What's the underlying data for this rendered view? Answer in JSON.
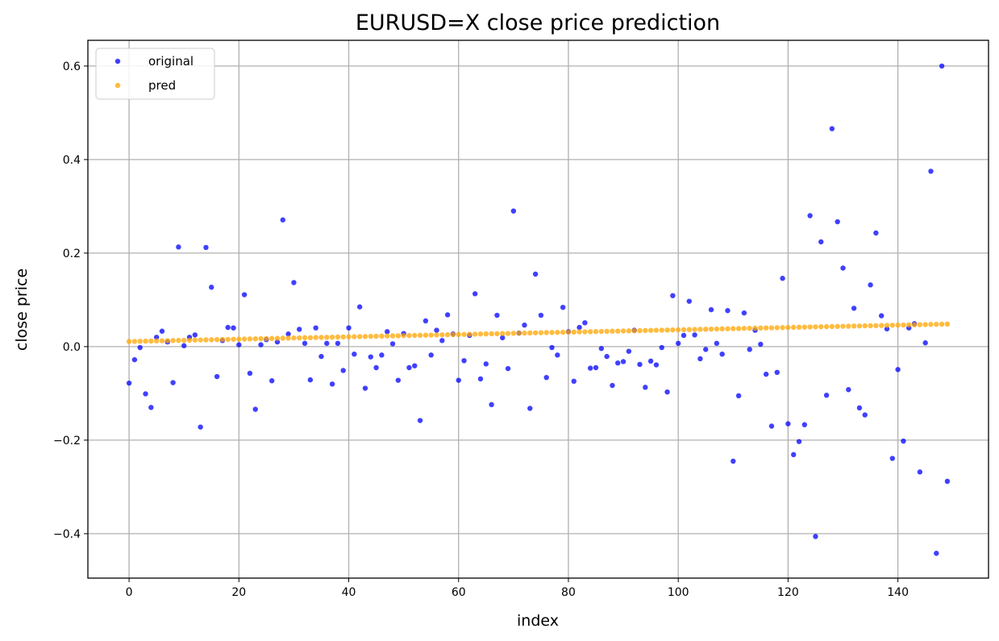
{
  "chart_data": {
    "type": "scatter",
    "title": "EURUSD=X close price prediction",
    "xlabel": "index",
    "ylabel": "close price",
    "xlim": [
      -7.5,
      156.5
    ],
    "ylim": [
      -0.495,
      0.655
    ],
    "xticks": [
      0,
      20,
      40,
      60,
      80,
      100,
      120,
      140
    ],
    "yticks": [
      -0.4,
      -0.2,
      0.0,
      0.2,
      0.4,
      0.6
    ],
    "xtick_labels": [
      "0",
      "20",
      "40",
      "60",
      "80",
      "100",
      "120",
      "140"
    ],
    "ytick_labels": [
      "−0.4",
      "−0.2",
      "0.0",
      "0.2",
      "0.4",
      "0.6"
    ],
    "grid": true,
    "legend_position": "upper-left",
    "series": [
      {
        "name": "original",
        "color": "#0000ff",
        "x": [
          0,
          1,
          2,
          3,
          4,
          5,
          6,
          7,
          8,
          9,
          10,
          11,
          12,
          13,
          14,
          15,
          16,
          17,
          18,
          19,
          20,
          21,
          22,
          23,
          24,
          25,
          26,
          27,
          28,
          29,
          30,
          31,
          32,
          33,
          34,
          35,
          36,
          37,
          38,
          39,
          40,
          41,
          42,
          43,
          44,
          45,
          46,
          47,
          48,
          49,
          50,
          51,
          52,
          53,
          54,
          55,
          56,
          57,
          58,
          59,
          60,
          61,
          62,
          63,
          64,
          65,
          66,
          67,
          68,
          69,
          70,
          71,
          72,
          73,
          74,
          75,
          76,
          77,
          78,
          79,
          80,
          81,
          82,
          83,
          84,
          85,
          86,
          87,
          88,
          89,
          90,
          91,
          92,
          93,
          94,
          95,
          96,
          97,
          98,
          99,
          100,
          101,
          102,
          103,
          104,
          105,
          106,
          107,
          108,
          109,
          110,
          111,
          112,
          113,
          114,
          115,
          116,
          117,
          118,
          119,
          120,
          121,
          122,
          123,
          124,
          125,
          126,
          127,
          128,
          129,
          130,
          131,
          132,
          133,
          134,
          135,
          136,
          137,
          138,
          139,
          140,
          141,
          142,
          143,
          144,
          145,
          146,
          147,
          148,
          149
        ],
        "y": [
          -0.078,
          -0.028,
          -0.002,
          -0.101,
          -0.13,
          0.02,
          0.033,
          0.01,
          -0.077,
          0.213,
          0.002,
          0.02,
          0.025,
          -0.172,
          0.212,
          0.127,
          -0.064,
          0.013,
          0.041,
          0.04,
          0.004,
          0.111,
          -0.057,
          -0.134,
          0.004,
          0.015,
          -0.073,
          0.01,
          0.271,
          0.027,
          0.137,
          0.037,
          0.007,
          -0.071,
          0.04,
          -0.021,
          0.007,
          -0.08,
          0.007,
          -0.051,
          0.04,
          -0.016,
          0.085,
          -0.089,
          -0.022,
          -0.045,
          -0.018,
          0.032,
          0.006,
          -0.072,
          0.028,
          -0.045,
          -0.041,
          -0.158,
          0.055,
          -0.018,
          0.035,
          0.013,
          0.068,
          0.027,
          -0.072,
          -0.03,
          0.024,
          0.113,
          -0.069,
          -0.037,
          -0.124,
          0.067,
          0.019,
          -0.047,
          0.29,
          0.029,
          0.046,
          -0.132,
          0.155,
          0.067,
          -0.066,
          -0.002,
          -0.018,
          0.084,
          0.032,
          -0.074,
          0.041,
          0.051,
          -0.046,
          -0.045,
          -0.004,
          -0.021,
          -0.083,
          -0.035,
          -0.032,
          -0.01,
          0.035,
          -0.038,
          -0.087,
          -0.031,
          -0.039,
          -0.002,
          -0.097,
          0.109,
          0.007,
          0.024,
          0.097,
          0.025,
          -0.026,
          -0.006,
          0.079,
          0.007,
          -0.016,
          0.077,
          -0.245,
          -0.105,
          0.072,
          -0.006,
          0.035,
          0.005,
          -0.059,
          -0.17,
          -0.055,
          0.146,
          -0.165,
          -0.231,
          -0.203,
          -0.167,
          0.28,
          -0.406,
          0.224,
          -0.104,
          0.466,
          0.267,
          0.168,
          -0.092,
          0.082,
          -0.131,
          -0.146,
          0.132,
          0.243,
          0.066,
          0.038,
          -0.239,
          -0.049,
          -0.202,
          0.04,
          0.049,
          -0.268,
          0.008,
          0.375,
          -0.442,
          0.6,
          -0.288
        ]
      },
      {
        "name": "pred",
        "color": "#ffa500",
        "x": [
          0,
          1,
          2,
          3,
          4,
          5,
          6,
          7,
          8,
          9,
          10,
          11,
          12,
          13,
          14,
          15,
          16,
          17,
          18,
          19,
          20,
          21,
          22,
          23,
          24,
          25,
          26,
          27,
          28,
          29,
          30,
          31,
          32,
          33,
          34,
          35,
          36,
          37,
          38,
          39,
          40,
          41,
          42,
          43,
          44,
          45,
          46,
          47,
          48,
          49,
          50,
          51,
          52,
          53,
          54,
          55,
          56,
          57,
          58,
          59,
          60,
          61,
          62,
          63,
          64,
          65,
          66,
          67,
          68,
          69,
          70,
          71,
          72,
          73,
          74,
          75,
          76,
          77,
          78,
          79,
          80,
          81,
          82,
          83,
          84,
          85,
          86,
          87,
          88,
          89,
          90,
          91,
          92,
          93,
          94,
          95,
          96,
          97,
          98,
          99,
          100,
          101,
          102,
          103,
          104,
          105,
          106,
          107,
          108,
          109,
          110,
          111,
          112,
          113,
          114,
          115,
          116,
          117,
          118,
          119,
          120,
          121,
          122,
          123,
          124,
          125,
          126,
          127,
          128,
          129,
          130,
          131,
          132,
          133,
          134,
          135,
          136,
          137,
          138,
          139,
          140,
          141,
          142,
          143,
          144,
          145,
          146,
          147,
          148,
          149
        ],
        "y": [
          0.011,
          0.0112,
          0.0115,
          0.0117,
          0.012,
          0.0122,
          0.0125,
          0.0127,
          0.013,
          0.0132,
          0.0135,
          0.0137,
          0.014,
          0.0142,
          0.0145,
          0.0147,
          0.015,
          0.0152,
          0.0155,
          0.0157,
          0.016,
          0.0162,
          0.0165,
          0.0167,
          0.017,
          0.0172,
          0.0175,
          0.0177,
          0.018,
          0.0182,
          0.0185,
          0.0187,
          0.019,
          0.0192,
          0.0195,
          0.0197,
          0.02,
          0.0202,
          0.0205,
          0.0207,
          0.021,
          0.0212,
          0.0215,
          0.0217,
          0.022,
          0.0222,
          0.0225,
          0.0227,
          0.023,
          0.0232,
          0.0235,
          0.0237,
          0.024,
          0.0242,
          0.0245,
          0.0247,
          0.025,
          0.0252,
          0.0255,
          0.0257,
          0.026,
          0.0262,
          0.0265,
          0.0267,
          0.027,
          0.0272,
          0.0275,
          0.0277,
          0.028,
          0.0282,
          0.0285,
          0.0287,
          0.029,
          0.0292,
          0.0295,
          0.0297,
          0.03,
          0.0302,
          0.0305,
          0.0307,
          0.031,
          0.0312,
          0.0315,
          0.0317,
          0.032,
          0.0322,
          0.0325,
          0.0327,
          0.033,
          0.0332,
          0.0335,
          0.0337,
          0.034,
          0.0342,
          0.0345,
          0.0347,
          0.035,
          0.0352,
          0.0355,
          0.0357,
          0.036,
          0.0362,
          0.0365,
          0.0367,
          0.037,
          0.0372,
          0.0375,
          0.0377,
          0.038,
          0.0382,
          0.0385,
          0.0387,
          0.039,
          0.0392,
          0.0395,
          0.0397,
          0.04,
          0.0402,
          0.0405,
          0.0407,
          0.041,
          0.0412,
          0.0415,
          0.0417,
          0.042,
          0.0422,
          0.0425,
          0.0427,
          0.043,
          0.0432,
          0.0435,
          0.0437,
          0.044,
          0.0442,
          0.0445,
          0.0447,
          0.045,
          0.0452,
          0.0455,
          0.0457,
          0.046,
          0.0462,
          0.0465,
          0.0467,
          0.047,
          0.0472,
          0.0475,
          0.0477,
          0.048,
          0.0482
        ]
      }
    ]
  }
}
